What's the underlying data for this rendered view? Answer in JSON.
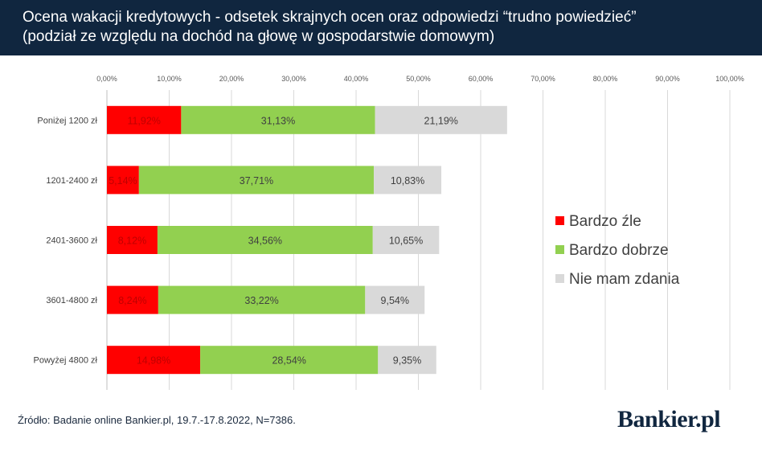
{
  "header": {
    "title_line1": "Ocena wakacji kredytowych - odsetek skrajnych ocen oraz odpowiedzi “trudno powiedzieć”",
    "title_line2": "(podział ze względu na dochód na głowę w gospodarstwie domowym)"
  },
  "footer": {
    "source": "Źródło: Badanie online Bankier.pl, 19.7.-17.8.2022, N=7386.",
    "logo": "Bankier.pl"
  },
  "colors": {
    "header_bg": "#10263f",
    "bardzo_zle": "#ff0000",
    "bardzo_dobrze": "#92d050",
    "nie_mam_zdania": "#d9d9d9"
  },
  "chart_data": {
    "type": "bar",
    "orientation": "horizontal",
    "stacked": true,
    "categories": [
      "Poniżej 1200 zł",
      "1201-2400 zł",
      "2401-3600 zł",
      "3601-4800 zł",
      "Powyżej 4800 zł"
    ],
    "series": [
      {
        "name": "Bardzo źle",
        "color": "#ff0000",
        "values": [
          11.92,
          5.14,
          8.12,
          8.24,
          14.98
        ],
        "labels": [
          "11,92%",
          "5,14%",
          "8,12%",
          "8,24%",
          "14,98%"
        ]
      },
      {
        "name": "Bardzo dobrze",
        "color": "#92d050",
        "values": [
          31.13,
          37.71,
          34.56,
          33.22,
          28.54
        ],
        "labels": [
          "31,13%",
          "37,71%",
          "34,56%",
          "33,22%",
          "28,54%"
        ]
      },
      {
        "name": "Nie mam zdania",
        "color": "#d9d9d9",
        "values": [
          21.19,
          10.83,
          10.65,
          9.54,
          9.35
        ],
        "labels": [
          "21,19%",
          "10,83%",
          "10,65%",
          "9,54%",
          "9,35%"
        ]
      }
    ],
    "xlim": [
      0,
      100
    ],
    "xticks": [
      "0,00%",
      "10,00%",
      "20,00%",
      "30,00%",
      "40,00%",
      "50,00%",
      "60,00%",
      "70,00%",
      "80,00%",
      "90,00%",
      "100,00%"
    ],
    "grid": true,
    "legend_position": "right"
  }
}
